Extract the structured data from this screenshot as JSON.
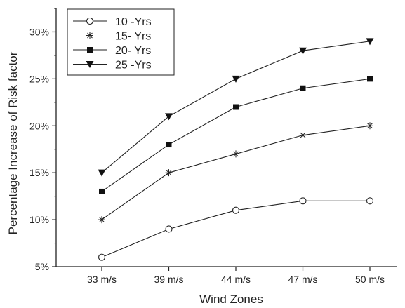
{
  "chart_data": {
    "type": "line",
    "title": "",
    "xlabel": "Wind Zones",
    "ylabel": "Percentage Increase of Risk factor",
    "categories": [
      "33 m/s",
      "39 m/s",
      "44 m/s",
      "47 m/s",
      "50 m/s"
    ],
    "ylim": [
      5,
      32.5
    ],
    "yticks": [
      5,
      10,
      15,
      20,
      25,
      30
    ],
    "ytick_labels": [
      "5%",
      "10%",
      "15%",
      "20%",
      "25%",
      "30%"
    ],
    "grid": false,
    "legend_position": "top-left",
    "series": [
      {
        "name": "10 -Yrs",
        "marker": "circle-open",
        "values": [
          6,
          9,
          11,
          12,
          12
        ]
      },
      {
        "name": "15- Yrs",
        "marker": "asterisk",
        "values": [
          10,
          15,
          17,
          19,
          20
        ]
      },
      {
        "name": "20- Yrs",
        "marker": "square-filled",
        "values": [
          13,
          18,
          22,
          24,
          25
        ]
      },
      {
        "name": "25 -Yrs",
        "marker": "triangle-down-filled",
        "values": [
          15,
          21,
          25,
          28,
          29
        ]
      }
    ]
  }
}
